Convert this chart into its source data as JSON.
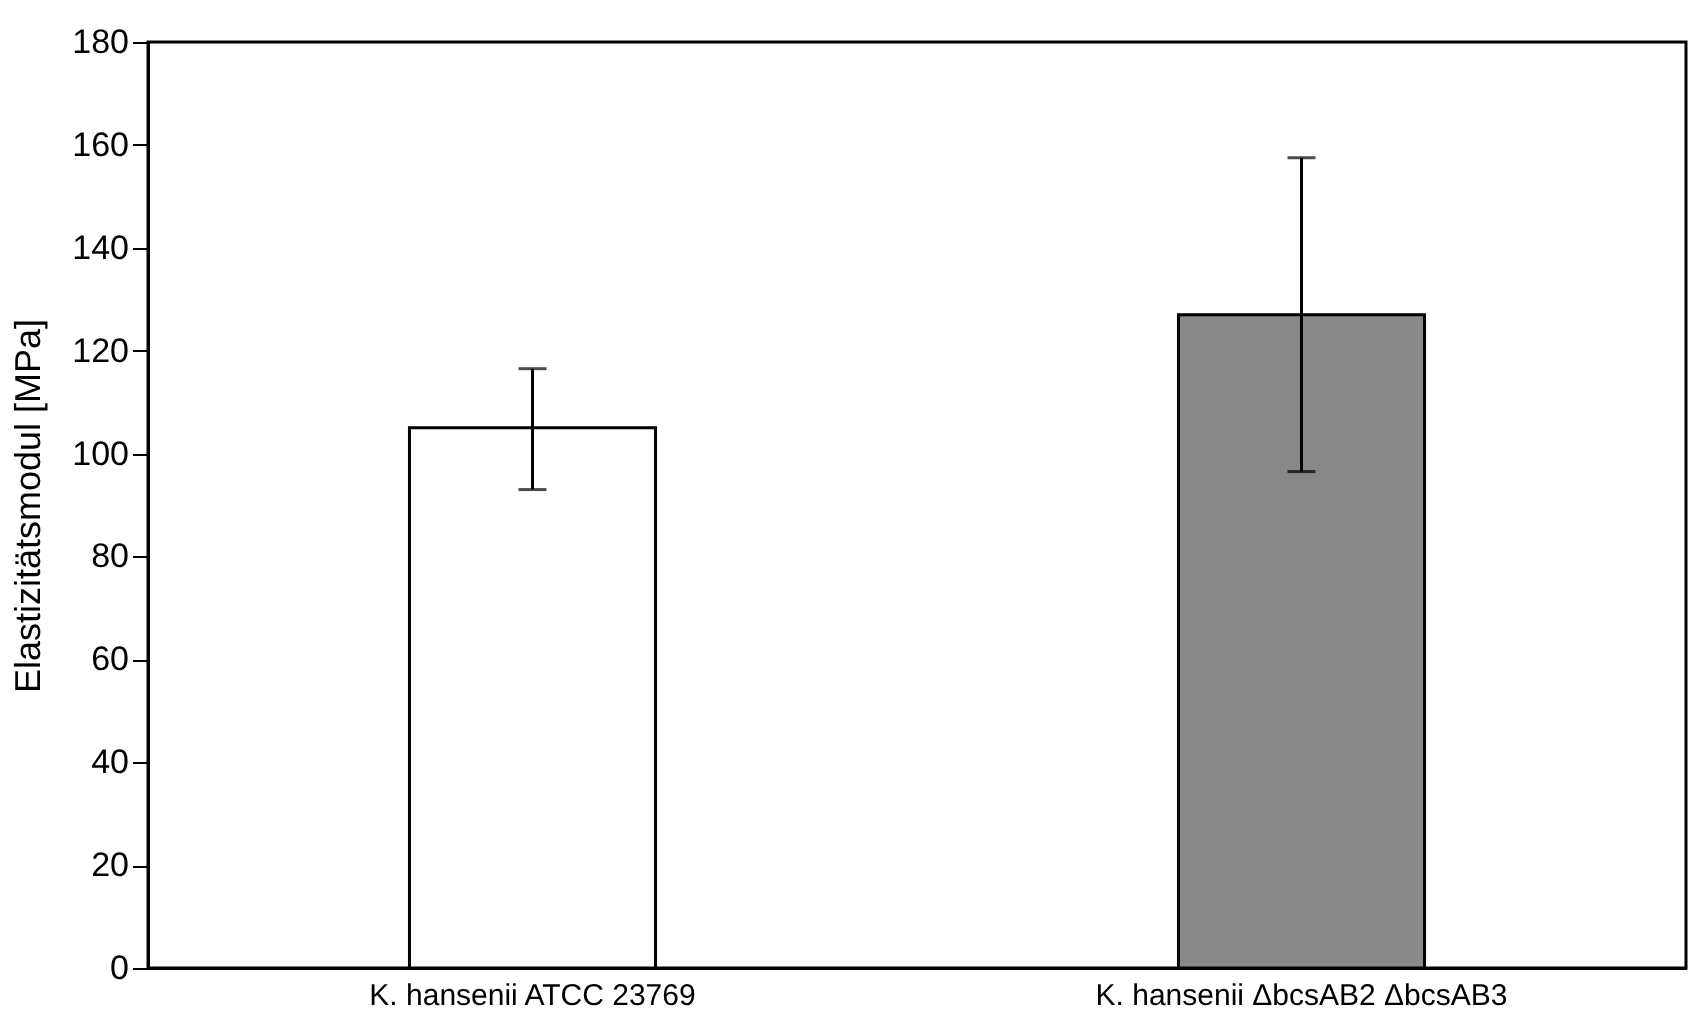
{
  "chart_data": {
    "type": "bar",
    "ylabel": "Elastizitätsmodul [MPa]",
    "categories": [
      "K. hansenii ATCC 23769",
      "K. hansenii ΔbcsAB2 ΔbcsAB3"
    ],
    "values": [
      105,
      127
    ],
    "colors": [
      "#ffffff",
      "#888888"
    ],
    "errors": [
      [
        93,
        116.5
      ],
      [
        96.5,
        157.5
      ]
    ],
    "ylim": [
      0,
      180
    ],
    "yticks": [
      0,
      20,
      40,
      60,
      80,
      100,
      120,
      140,
      160,
      180
    ],
    "grid": false,
    "legend": false
  }
}
